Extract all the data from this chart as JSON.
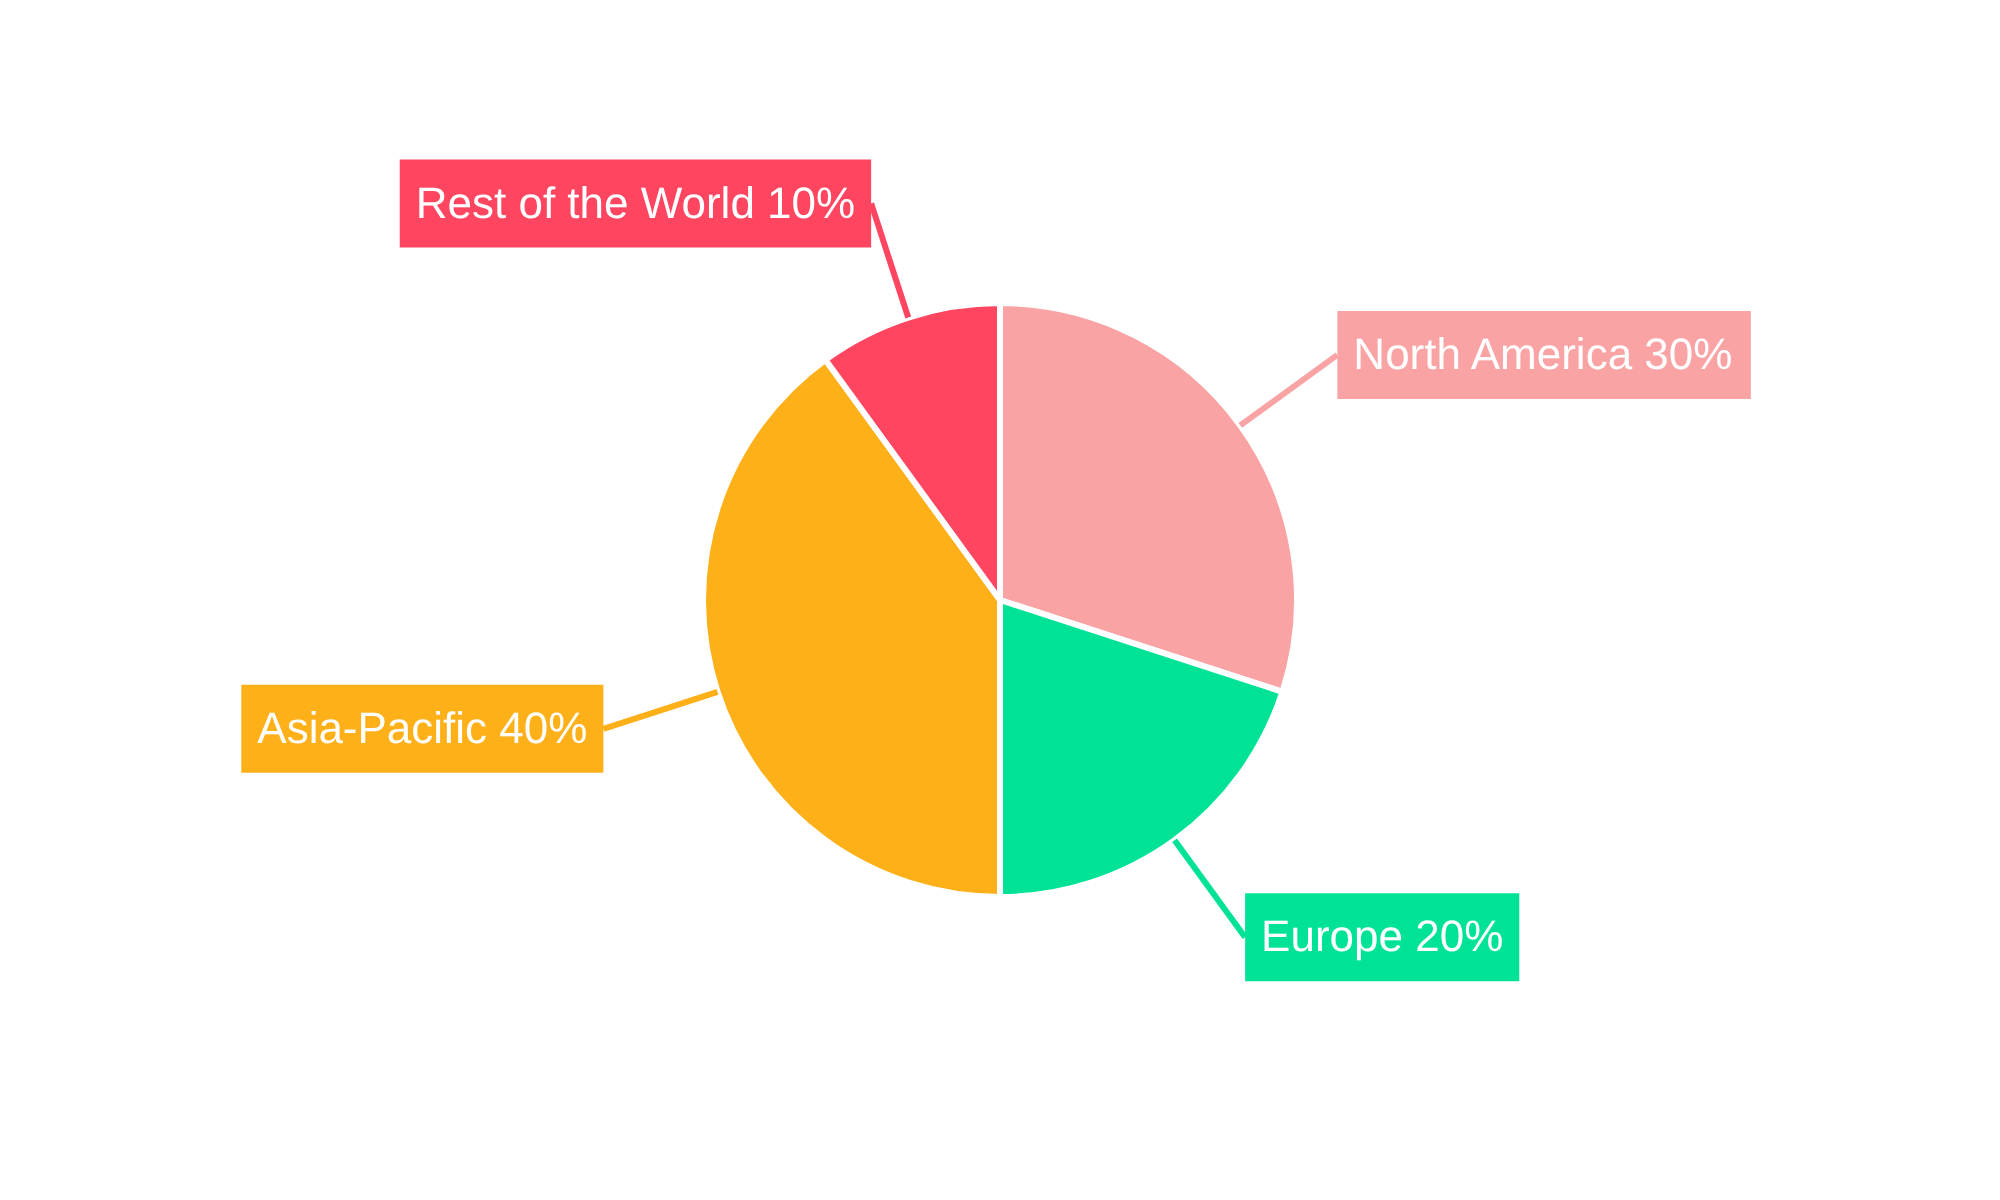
{
  "chart_data": {
    "type": "pie",
    "categories": [
      "North America",
      "Europe",
      "Asia-Pacific",
      "Rest of the World"
    ],
    "values": [
      30,
      20,
      40,
      10
    ],
    "colors": [
      "#f9a3a4",
      "#00e396",
      "#feb019",
      "#ff4560"
    ],
    "value_labels": [
      "30%",
      "20%",
      "40%",
      "10%"
    ],
    "legend": false
  }
}
